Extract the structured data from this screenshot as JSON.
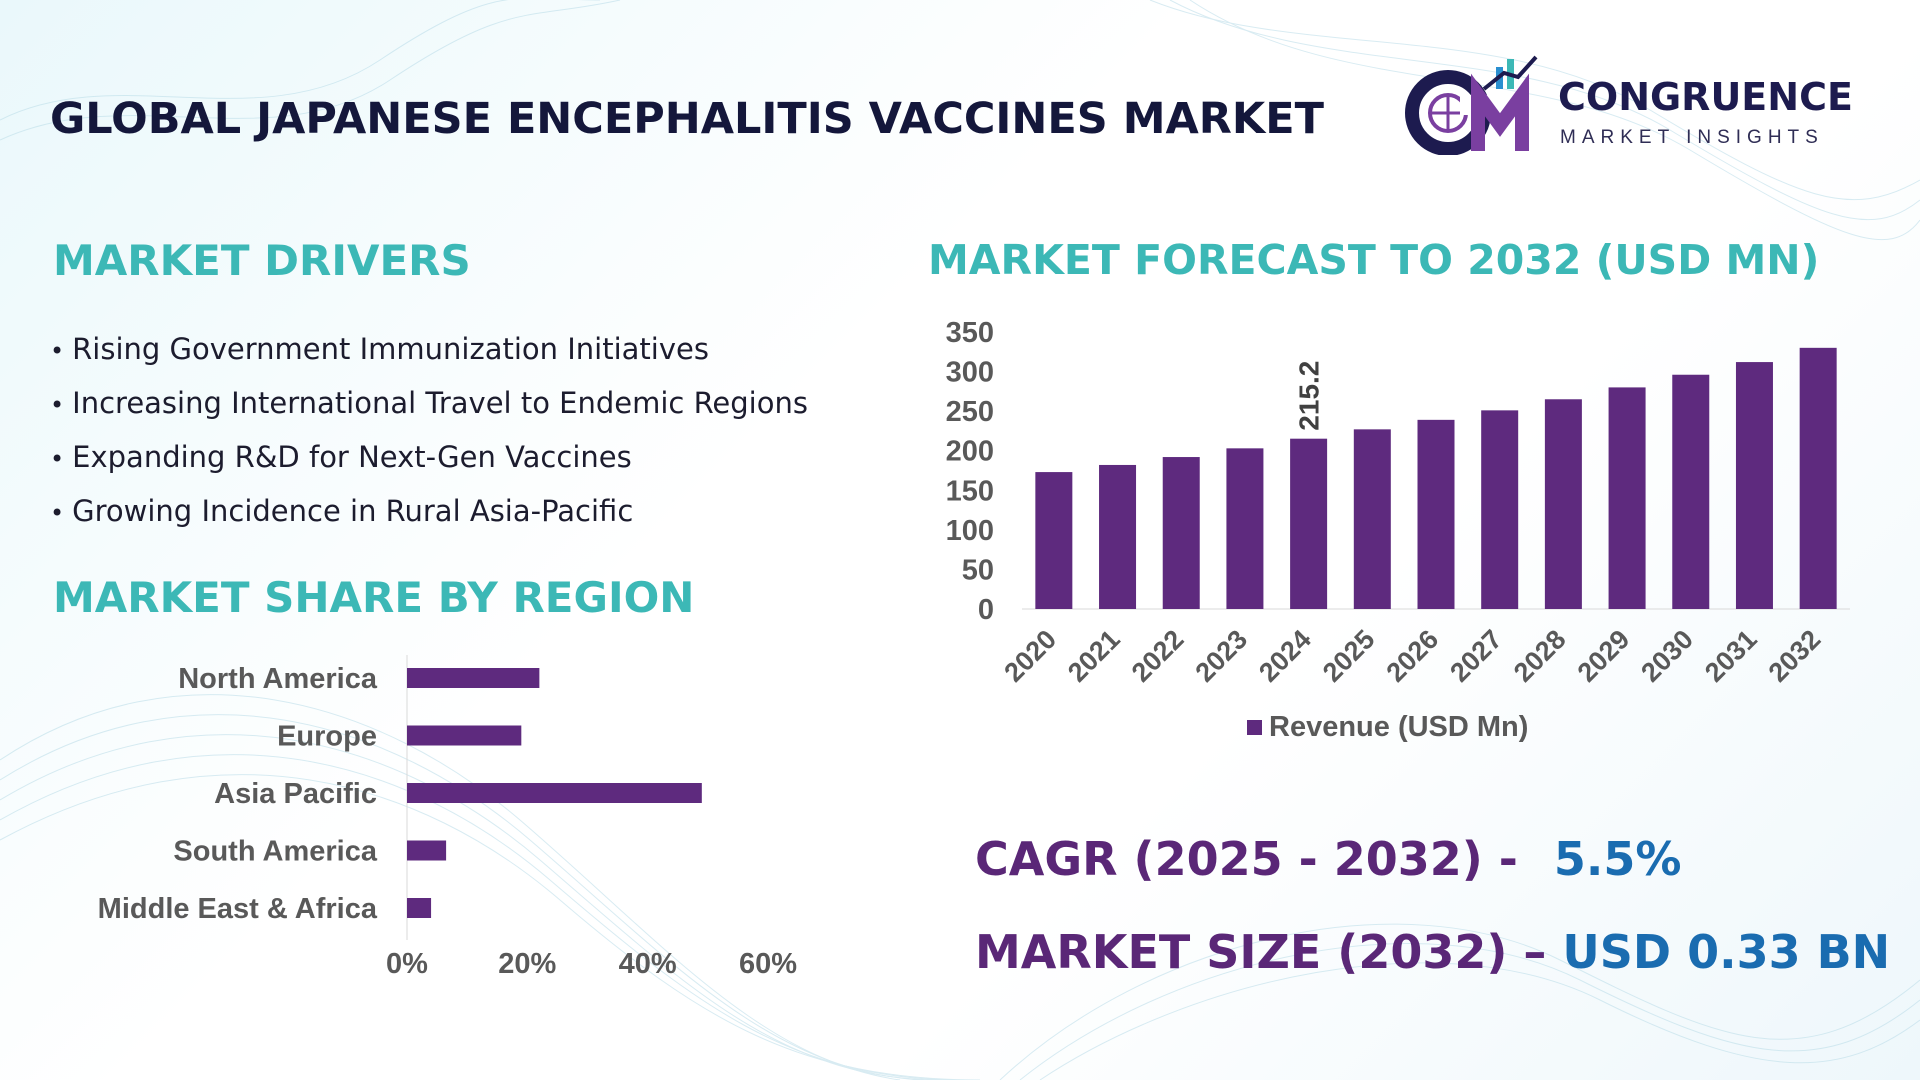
{
  "header": {
    "title": "GLOBAL JAPANESE ENCEPHALITIS VACCINES MARKET",
    "brand": {
      "name": "CONGRUENCE",
      "tagline": "MARKET INSIGHTS"
    }
  },
  "drivers": {
    "title": "MARKET DRIVERS",
    "items": [
      "Rising Government Immunization Initiatives",
      "Increasing International Travel to Endemic Regions",
      "Expanding R&D for Next-Gen Vaccines",
      "Growing Incidence in Rural Asia-Pacific"
    ]
  },
  "region_section": {
    "title": "MARKET SHARE BY REGION"
  },
  "forecast_section": {
    "title": "MARKET FORECAST TO 2032 (USD MN)"
  },
  "kpis": {
    "cagr_label": "CAGR (2025 - 2032) -",
    "cagr_value": "5.5%",
    "size_label": "MARKET SIZE (2032) –",
    "size_value": "USD 0.33 BN"
  },
  "colors": {
    "bar": "#5e2a7e",
    "accent_teal": "#3cb8b6",
    "kpi_label": "#5a2777",
    "kpi_value": "#1a6cb0",
    "title_dark": "#14173b"
  },
  "chart_data": [
    {
      "type": "bar",
      "orientation": "horizontal",
      "categories": [
        "North America",
        "Europe",
        "Asia Pacific",
        "South America",
        "Middle East & Africa"
      ],
      "values": [
        22,
        19,
        49,
        6.5,
        4
      ],
      "value_unit": "%",
      "xlim": [
        0,
        60
      ],
      "xticks": [
        "0%",
        "20%",
        "40%",
        "60%"
      ],
      "title": "",
      "legend": "none"
    },
    {
      "type": "bar",
      "orientation": "vertical",
      "categories": [
        "2020",
        "2021",
        "2022",
        "2023",
        "2024",
        "2025",
        "2026",
        "2027",
        "2028",
        "2029",
        "2030",
        "2031",
        "2032"
      ],
      "series": [
        {
          "name": "Revenue (USD Mn)",
          "values": [
            173,
            182,
            192,
            203,
            215.2,
            227,
            239,
            251,
            265,
            280,
            296,
            312,
            330
          ]
        }
      ],
      "data_labels": [
        {
          "category": "2024",
          "label": "215.2"
        }
      ],
      "ylim": [
        0,
        350
      ],
      "yticks": [
        "0",
        "50",
        "100",
        "150",
        "200",
        "250",
        "300",
        "350"
      ],
      "title": "",
      "legend": "bottom-center"
    }
  ]
}
